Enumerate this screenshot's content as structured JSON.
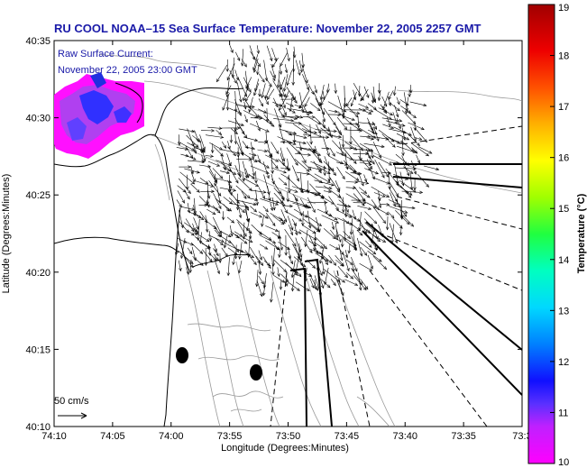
{
  "title": "RU COOL  NOAA–15  Sea Surface Temperature:  November 22, 2005 2257 GMT",
  "overlay": {
    "line1": "Raw Surface Current:",
    "line2": "November 22, 2005 23:00 GMT"
  },
  "axes": {
    "xlabel": "Longitude (Degrees:Minutes)",
    "ylabel": "Latitude (Degrees:Minutes)",
    "x_ticks": [
      "74:10",
      "74:05",
      "74:00",
      "73:55",
      "73:50",
      "73:45",
      "73:40",
      "73:35",
      "73:3"
    ],
    "y_ticks": [
      "40:35",
      "40:30",
      "40:25",
      "40:20",
      "40:15",
      "40:10"
    ]
  },
  "scale": {
    "label": "50 cm/s"
  },
  "colorbar": {
    "label": "Temperature (°C)",
    "ticks": [
      "19",
      "18",
      "17",
      "16",
      "15",
      "14",
      "13",
      "12",
      "11",
      "10"
    ],
    "min": 10,
    "max": 19
  },
  "colors": {
    "title": "#1a1aa8",
    "coast": "#000000",
    "bathymetry": "#9a9a9a",
    "vectors": "#000000"
  }
}
